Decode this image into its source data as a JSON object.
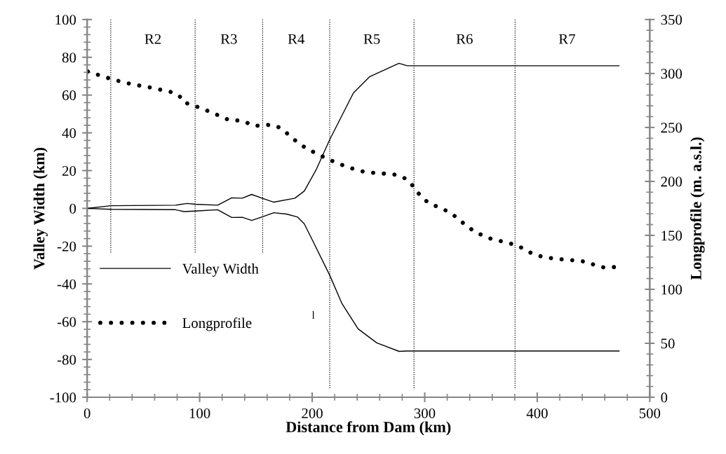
{
  "chart_data": {
    "type": "line",
    "xlabel": "Distance from Dam (km)",
    "ylabel": "Valley Width (km)",
    "y2label": "Longprofile (m. a.s.l.)",
    "xlim": [
      0,
      500
    ],
    "xticks": [
      0,
      100,
      200,
      300,
      400,
      500
    ],
    "ylim": [
      -100,
      100
    ],
    "yticks": [
      -100,
      -80,
      -60,
      -40,
      -20,
      0,
      20,
      40,
      60,
      80,
      100
    ],
    "y2lim": [
      0,
      350
    ],
    "y2ticks": [
      0,
      50,
      100,
      150,
      200,
      250,
      300,
      350
    ],
    "legend": "left",
    "grid": false,
    "marker": "none",
    "series": [
      {
        "name": "Valley Width",
        "color": "#000000",
        "line_style": "solid",
        "x": [
          0,
          21,
          78.6,
          89,
          95.9,
          116,
          128.5,
          137.9,
          146.2,
          155.5,
          165.9,
          184.7,
          193,
          203.4,
          215.6,
          236.6,
          251.2,
          274,
          277.2,
          284.5,
          472.7
        ],
        "values": [
          0,
          1.4,
          1.7,
          2.6,
          2.2,
          1.7,
          5.6,
          5.4,
          7.4,
          5.4,
          3.3,
          5.4,
          9.2,
          20.3,
          36.4,
          61.1,
          69.8,
          76,
          76.8,
          75.5,
          75.5
        ]
      },
      {
        "color": "#000000",
        "line_style": "solid",
        "x": [
          0,
          21,
          78.6,
          86,
          95.9,
          116,
          128.5,
          137.9,
          146.2,
          155.5,
          165.9,
          177.1,
          186.8,
          193,
          199.2,
          215.6,
          226.3,
          240.8,
          257.4,
          277.2,
          284.5,
          472.7
        ],
        "values": [
          0,
          -0.5,
          -0.7,
          -1.7,
          -1.4,
          -0.7,
          -4.8,
          -4.7,
          -6.4,
          -4.5,
          -2.3,
          -3,
          -4.5,
          -8.2,
          -15.6,
          -35.4,
          -50.2,
          -63.8,
          -71.2,
          -75.7,
          -75.5,
          -75.5
        ]
      },
      {
        "name": "Longprofile",
        "color": "#000000",
        "line_style": "dotted",
        "axis": "y2",
        "x": [
          0.6,
          6.2,
          12.7,
          18.9,
          25.1,
          31.6,
          38,
          44.5,
          51,
          57.4,
          63.6,
          70.1,
          76.5,
          82.2,
          85.5,
          91.3,
          97.3,
          103.6,
          109.6,
          115.6,
          121.7,
          127.7,
          134.1,
          140.4,
          146.2,
          152.6,
          159.1,
          165.5,
          171.6,
          176.8,
          181.6,
          186.9,
          192.1,
          197.8,
          203.6,
          209.4,
          215.2,
          221.3,
          227.5,
          233.7,
          240,
          246.3,
          252.8,
          259.3,
          265.7,
          272.4,
          278.7,
          284.7,
          288.8,
          292.6,
          297.1,
          302.1,
          308,
          313.8,
          319.8,
          325.2,
          330.4,
          335.6,
          340.8,
          346.4,
          352.3,
          358.5,
          364.8,
          371.4,
          377.6,
          383.7,
          389.3,
          395.1,
          401.3,
          407.6,
          414,
          420.5,
          426.9,
          433.6,
          440.2,
          446.7,
          452.5,
          458.7,
          465.4,
          471.8
        ],
        "values": [
          301.9,
          299.8,
          297.9,
          295.7,
          293.8,
          292.2,
          290.5,
          289.2,
          287.9,
          286.8,
          285.3,
          284,
          282.3,
          279,
          273.2,
          271.7,
          269.3,
          266.9,
          264.3,
          261.7,
          258.7,
          256.3,
          256.5,
          255.4,
          251.9,
          251.6,
          252.4,
          252.2,
          249.6,
          245.3,
          240.7,
          236.4,
          232.5,
          229,
          226,
          223,
          220.1,
          217.5,
          214.9,
          212.6,
          210.4,
          208.9,
          208.1,
          207.6,
          207.1,
          206.5,
          204.8,
          201.6,
          196.6,
          191.2,
          185.7,
          181.2,
          177.9,
          175.6,
          172.5,
          169.1,
          164.7,
          160.2,
          156.1,
          152.6,
          149.4,
          147,
          145.3,
          143.8,
          142,
          139.9,
          136.6,
          133.4,
          131,
          129.7,
          128.6,
          127.9,
          127.5,
          126.6,
          126,
          124.5,
          121.7,
          120.4,
          120.6,
          120.6
        ]
      },
      {
        "color": "#000000",
        "line_style": "dotted",
        "x": [
          21,
          21
        ],
        "values": [
          100,
          -24
        ]
      },
      {
        "color": "#000000",
        "line_style": "dotted",
        "x": [
          96,
          96
        ],
        "values": [
          100,
          -24
        ]
      },
      {
        "color": "#000000",
        "line_style": "dotted",
        "x": [
          156,
          156
        ],
        "values": [
          100,
          -24
        ]
      },
      {
        "color": "#000000",
        "line_style": "dotted",
        "x": [
          215.6,
          215.6
        ],
        "values": [
          100,
          -96
        ]
      },
      {
        "color": "#000000",
        "line_style": "dotted",
        "x": [
          290.5,
          290.5
        ],
        "values": [
          100,
          -96
        ]
      },
      {
        "color": "#000000",
        "line_style": "dotted",
        "x": [
          380.3,
          380.3
        ],
        "values": [
          100,
          -96
        ]
      }
    ],
    "annotations": [
      "R2",
      "R3",
      "R4",
      "R5",
      "R6",
      "R7",
      "l"
    ]
  }
}
